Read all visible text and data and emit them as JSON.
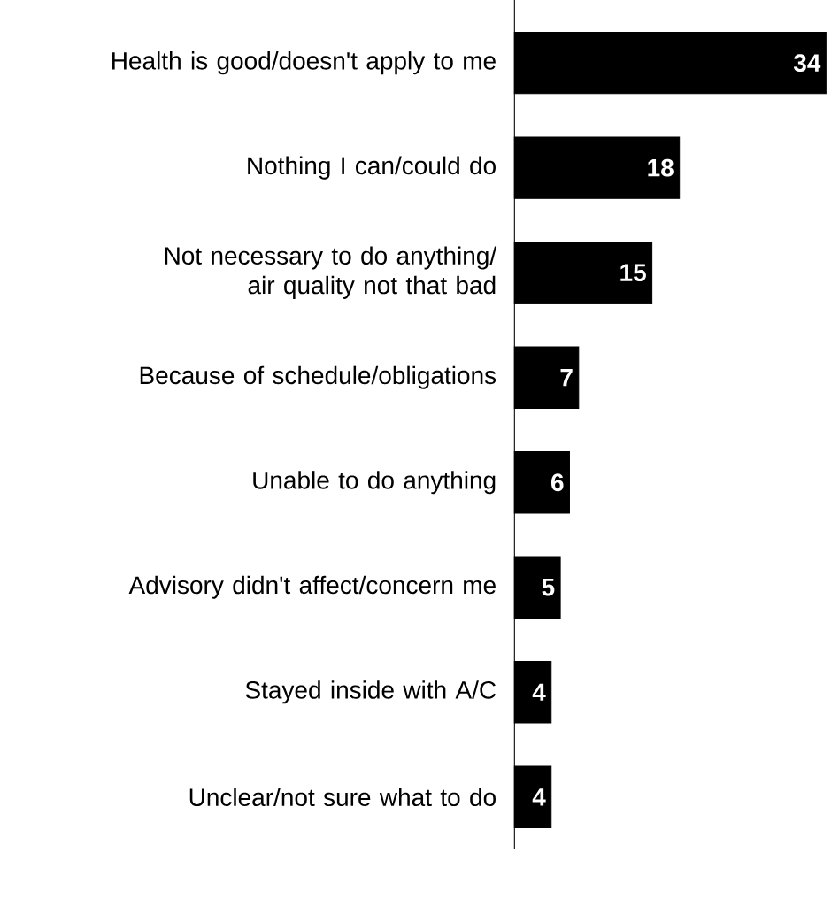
{
  "chart_data": {
    "type": "bar",
    "orientation": "horizontal",
    "categories": [
      "Health is good/doesn't apply to me",
      "Nothing I can/could do",
      "Not necessary to do anything/ air quality not that bad",
      "Because of schedule/obligations",
      "Unable to do anything",
      "Advisory didn't affect/concern me",
      "Stayed inside with A/C",
      "Unclear/not sure what to do"
    ],
    "values": [
      34,
      18,
      15,
      7,
      6,
      5,
      4,
      4
    ],
    "color": "#000000",
    "data_labels": true
  }
}
